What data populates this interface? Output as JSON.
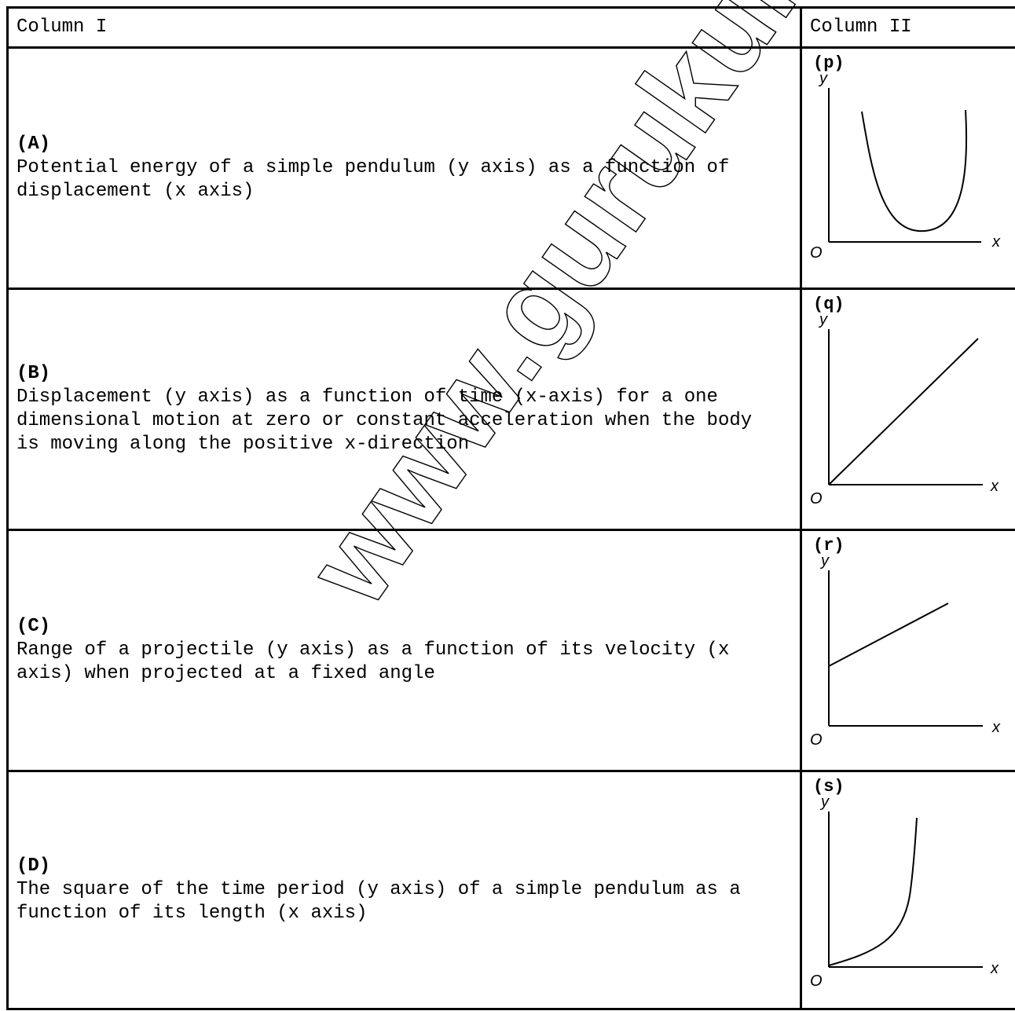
{
  "watermark": "www.gurukulinfo.co",
  "header": {
    "col1": "Column I",
    "col2": "Column II"
  },
  "rows": [
    {
      "tag": "(A)",
      "text": "Potential energy of a simple pendulum (y axis) as a function of displacement (x axis)",
      "graph_label": "(p)"
    },
    {
      "tag": "(B)",
      "text": "Displacement (y axis) as a function of time (x-axis) for a one dimensional motion at zero or constant acceleration when the body is moving along the positive x-direction",
      "graph_label": "(q)"
    },
    {
      "tag": "(C)",
      "text": "Range of a projectile (y axis) as a function of its velocity (x axis) when projected at a fixed angle",
      "graph_label": "(r)"
    },
    {
      "tag": "(D)",
      "text": "The square of the time period (y axis) of a simple pendulum as a function of its length (x axis)",
      "graph_label": "(s)"
    }
  ],
  "axis": {
    "x": "x",
    "y": "y",
    "origin": "O"
  }
}
